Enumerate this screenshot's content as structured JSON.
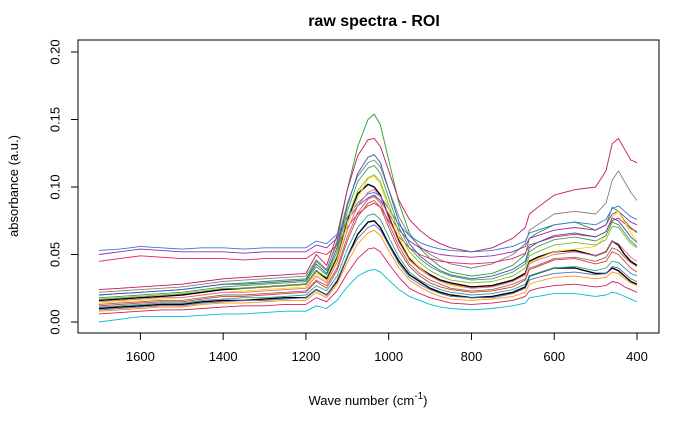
{
  "chart_data": {
    "type": "line",
    "title": "raw spectra - ROI",
    "xlabel_main": "Wave number (cm",
    "xlabel_sup": "-1",
    "xlabel_close": ")",
    "ylabel": "absorbance (a.u.)",
    "x_reversed": true,
    "xlim": [
      1700,
      400
    ],
    "ylim": [
      0.0,
      0.2
    ],
    "x_ticks": [
      1600,
      1400,
      1200,
      1000,
      800,
      600,
      400
    ],
    "x_tick_labels": [
      "1600",
      "1400",
      "1200",
      "1000",
      "800",
      "600",
      "400"
    ],
    "y_ticks": [
      0.0,
      0.05,
      0.1,
      0.15,
      0.2
    ],
    "y_tick_labels": [
      "0.00",
      "0.05",
      "0.10",
      "0.15",
      "0.20"
    ],
    "grid": false,
    "legend": "none",
    "x": [
      1700,
      1650,
      1600,
      1550,
      1500,
      1450,
      1400,
      1350,
      1300,
      1250,
      1200,
      1175,
      1150,
      1125,
      1100,
      1075,
      1050,
      1035,
      1020,
      1000,
      975,
      950,
      925,
      900,
      875,
      850,
      800,
      750,
      700,
      670,
      660,
      640,
      600,
      550,
      500,
      475,
      460,
      445,
      430,
      415,
      400
    ],
    "series": [
      {
        "color": "#000000",
        "values": [
          0.01,
          0.011,
          0.012,
          0.013,
          0.013,
          0.015,
          0.016,
          0.016,
          0.017,
          0.018,
          0.018,
          0.024,
          0.02,
          0.03,
          0.048,
          0.065,
          0.074,
          0.075,
          0.07,
          0.058,
          0.045,
          0.035,
          0.03,
          0.025,
          0.022,
          0.02,
          0.018,
          0.019,
          0.022,
          0.026,
          0.034,
          0.036,
          0.04,
          0.04,
          0.036,
          0.036,
          0.04,
          0.038,
          0.034,
          0.03,
          0.028
        ]
      },
      {
        "color": "#000000",
        "values": [
          0.016,
          0.017,
          0.018,
          0.019,
          0.02,
          0.022,
          0.024,
          0.025,
          0.026,
          0.027,
          0.028,
          0.038,
          0.032,
          0.048,
          0.076,
          0.095,
          0.102,
          0.1,
          0.094,
          0.078,
          0.06,
          0.047,
          0.04,
          0.035,
          0.031,
          0.029,
          0.026,
          0.027,
          0.031,
          0.036,
          0.045,
          0.048,
          0.052,
          0.053,
          0.049,
          0.052,
          0.06,
          0.057,
          0.05,
          0.045,
          0.042
        ]
      },
      {
        "color": "#22a02a",
        "values": [
          0.02,
          0.021,
          0.022,
          0.023,
          0.024,
          0.026,
          0.028,
          0.029,
          0.03,
          0.031,
          0.032,
          0.045,
          0.038,
          0.06,
          0.098,
          0.13,
          0.15,
          0.154,
          0.146,
          0.12,
          0.088,
          0.066,
          0.055,
          0.047,
          0.041,
          0.037,
          0.034,
          0.036,
          0.042,
          0.05,
          0.062,
          0.066,
          0.072,
          0.074,
          0.068,
          0.072,
          0.085,
          0.082,
          0.075,
          0.07,
          0.066
        ]
      },
      {
        "color": "#c2185b",
        "values": [
          0.024,
          0.025,
          0.026,
          0.027,
          0.028,
          0.03,
          0.032,
          0.033,
          0.034,
          0.035,
          0.036,
          0.05,
          0.042,
          0.064,
          0.098,
          0.123,
          0.135,
          0.136,
          0.13,
          0.112,
          0.09,
          0.076,
          0.068,
          0.062,
          0.058,
          0.055,
          0.052,
          0.055,
          0.062,
          0.07,
          0.08,
          0.085,
          0.094,
          0.098,
          0.1,
          0.112,
          0.132,
          0.136,
          0.128,
          0.12,
          0.118
        ]
      },
      {
        "color": "#808080",
        "values": [
          0.022,
          0.023,
          0.024,
          0.025,
          0.026,
          0.028,
          0.03,
          0.031,
          0.032,
          0.033,
          0.034,
          0.046,
          0.039,
          0.058,
          0.088,
          0.108,
          0.118,
          0.12,
          0.115,
          0.098,
          0.078,
          0.064,
          0.056,
          0.05,
          0.046,
          0.043,
          0.04,
          0.043,
          0.05,
          0.058,
          0.068,
          0.072,
          0.08,
          0.082,
          0.08,
          0.088,
          0.105,
          0.112,
          0.104,
          0.096,
          0.09
        ]
      },
      {
        "color": "#2e7bd6",
        "values": [
          0.053,
          0.054,
          0.056,
          0.055,
          0.054,
          0.055,
          0.055,
          0.054,
          0.055,
          0.055,
          0.055,
          0.06,
          0.058,
          0.065,
          0.078,
          0.088,
          0.095,
          0.096,
          0.093,
          0.084,
          0.072,
          0.064,
          0.059,
          0.056,
          0.054,
          0.053,
          0.052,
          0.053,
          0.056,
          0.06,
          0.066,
          0.068,
          0.072,
          0.074,
          0.072,
          0.076,
          0.084,
          0.086,
          0.082,
          0.078,
          0.076
        ]
      },
      {
        "color": "#9c27b0",
        "values": [
          0.05,
          0.052,
          0.054,
          0.053,
          0.052,
          0.052,
          0.052,
          0.051,
          0.052,
          0.052,
          0.052,
          0.057,
          0.055,
          0.062,
          0.075,
          0.086,
          0.092,
          0.094,
          0.09,
          0.08,
          0.068,
          0.06,
          0.055,
          0.052,
          0.05,
          0.049,
          0.048,
          0.049,
          0.052,
          0.056,
          0.062,
          0.064,
          0.068,
          0.07,
          0.068,
          0.072,
          0.08,
          0.082,
          0.078,
          0.074,
          0.072
        ]
      },
      {
        "color": "#e91e63",
        "values": [
          0.045,
          0.047,
          0.049,
          0.048,
          0.047,
          0.047,
          0.047,
          0.046,
          0.047,
          0.047,
          0.047,
          0.052,
          0.05,
          0.057,
          0.07,
          0.08,
          0.086,
          0.088,
          0.085,
          0.075,
          0.063,
          0.055,
          0.05,
          0.047,
          0.045,
          0.044,
          0.043,
          0.044,
          0.047,
          0.051,
          0.057,
          0.059,
          0.063,
          0.065,
          0.063,
          0.067,
          0.075,
          0.077,
          0.073,
          0.069,
          0.067
        ]
      },
      {
        "color": "#00bcd4",
        "values": [
          0.0,
          0.002,
          0.004,
          0.004,
          0.004,
          0.005,
          0.006,
          0.006,
          0.007,
          0.008,
          0.008,
          0.012,
          0.01,
          0.016,
          0.026,
          0.034,
          0.038,
          0.039,
          0.037,
          0.031,
          0.024,
          0.019,
          0.016,
          0.013,
          0.011,
          0.01,
          0.009,
          0.01,
          0.012,
          0.014,
          0.018,
          0.019,
          0.021,
          0.021,
          0.019,
          0.02,
          0.022,
          0.021,
          0.019,
          0.017,
          0.015
        ]
      },
      {
        "color": "#ffd600",
        "values": [
          0.014,
          0.015,
          0.016,
          0.017,
          0.018,
          0.02,
          0.022,
          0.023,
          0.024,
          0.025,
          0.026,
          0.036,
          0.03,
          0.046,
          0.072,
          0.092,
          0.106,
          0.108,
          0.102,
          0.084,
          0.062,
          0.048,
          0.04,
          0.034,
          0.03,
          0.027,
          0.025,
          0.026,
          0.03,
          0.035,
          0.044,
          0.047,
          0.052,
          0.054,
          0.056,
          0.064,
          0.078,
          0.082,
          0.074,
          0.066,
          0.06
        ]
      },
      {
        "color": "#e53935",
        "values": [
          0.012,
          0.013,
          0.014,
          0.015,
          0.015,
          0.017,
          0.019,
          0.019,
          0.02,
          0.021,
          0.022,
          0.03,
          0.025,
          0.038,
          0.06,
          0.078,
          0.088,
          0.09,
          0.085,
          0.07,
          0.053,
          0.041,
          0.034,
          0.029,
          0.026,
          0.024,
          0.022,
          0.023,
          0.026,
          0.031,
          0.039,
          0.041,
          0.046,
          0.047,
          0.043,
          0.045,
          0.052,
          0.05,
          0.045,
          0.04,
          0.037
        ]
      },
      {
        "color": "#43a047",
        "values": [
          0.018,
          0.019,
          0.02,
          0.021,
          0.022,
          0.024,
          0.026,
          0.027,
          0.028,
          0.029,
          0.03,
          0.041,
          0.035,
          0.052,
          0.082,
          0.104,
          0.114,
          0.116,
          0.11,
          0.092,
          0.07,
          0.055,
          0.047,
          0.041,
          0.037,
          0.034,
          0.031,
          0.032,
          0.037,
          0.043,
          0.052,
          0.056,
          0.061,
          0.063,
          0.06,
          0.064,
          0.074,
          0.072,
          0.066,
          0.06,
          0.056
        ]
      },
      {
        "color": "#ff9800",
        "values": [
          0.008,
          0.009,
          0.01,
          0.011,
          0.011,
          0.013,
          0.014,
          0.014,
          0.015,
          0.016,
          0.016,
          0.022,
          0.018,
          0.028,
          0.044,
          0.058,
          0.066,
          0.068,
          0.064,
          0.053,
          0.04,
          0.031,
          0.026,
          0.022,
          0.019,
          0.017,
          0.016,
          0.017,
          0.019,
          0.022,
          0.028,
          0.03,
          0.033,
          0.034,
          0.032,
          0.033,
          0.037,
          0.036,
          0.032,
          0.029,
          0.027
        ]
      },
      {
        "color": "#3f51b5",
        "values": [
          0.02,
          0.021,
          0.022,
          0.023,
          0.024,
          0.026,
          0.028,
          0.028,
          0.029,
          0.03,
          0.031,
          0.043,
          0.036,
          0.055,
          0.086,
          0.11,
          0.122,
          0.124,
          0.118,
          0.098,
          0.074,
          0.058,
          0.049,
          0.043,
          0.038,
          0.035,
          0.032,
          0.034,
          0.039,
          0.045,
          0.055,
          0.059,
          0.064,
          0.066,
          0.063,
          0.067,
          0.077,
          0.075,
          0.069,
          0.063,
          0.059
        ]
      },
      {
        "color": "#f06292",
        "values": [
          0.015,
          0.016,
          0.017,
          0.018,
          0.018,
          0.02,
          0.022,
          0.022,
          0.023,
          0.024,
          0.025,
          0.034,
          0.029,
          0.044,
          0.068,
          0.086,
          0.096,
          0.098,
          0.093,
          0.077,
          0.059,
          0.046,
          0.039,
          0.034,
          0.03,
          0.028,
          0.025,
          0.026,
          0.03,
          0.035,
          0.043,
          0.046,
          0.05,
          0.052,
          0.049,
          0.052,
          0.06,
          0.058,
          0.053,
          0.048,
          0.045
        ]
      },
      {
        "color": "#26a69a",
        "values": [
          0.011,
          0.012,
          0.013,
          0.014,
          0.014,
          0.016,
          0.017,
          0.018,
          0.018,
          0.019,
          0.02,
          0.027,
          0.023,
          0.034,
          0.054,
          0.07,
          0.079,
          0.08,
          0.076,
          0.063,
          0.048,
          0.037,
          0.031,
          0.027,
          0.024,
          0.022,
          0.02,
          0.021,
          0.024,
          0.028,
          0.034,
          0.036,
          0.04,
          0.041,
          0.038,
          0.04,
          0.045,
          0.044,
          0.04,
          0.036,
          0.034
        ]
      },
      {
        "color": "#8d6e63",
        "values": [
          0.013,
          0.014,
          0.015,
          0.016,
          0.016,
          0.018,
          0.02,
          0.02,
          0.021,
          0.022,
          0.023,
          0.031,
          0.027,
          0.04,
          0.063,
          0.081,
          0.091,
          0.093,
          0.088,
          0.073,
          0.056,
          0.043,
          0.036,
          0.031,
          0.028,
          0.025,
          0.023,
          0.024,
          0.028,
          0.032,
          0.04,
          0.042,
          0.047,
          0.048,
          0.045,
          0.048,
          0.055,
          0.053,
          0.048,
          0.044,
          0.041
        ]
      },
      {
        "color": "#7cb342",
        "values": [
          0.017,
          0.018,
          0.019,
          0.02,
          0.021,
          0.023,
          0.025,
          0.025,
          0.026,
          0.027,
          0.028,
          0.038,
          0.033,
          0.049,
          0.077,
          0.097,
          0.107,
          0.109,
          0.104,
          0.087,
          0.066,
          0.052,
          0.044,
          0.038,
          0.034,
          0.031,
          0.029,
          0.03,
          0.034,
          0.04,
          0.049,
          0.052,
          0.057,
          0.059,
          0.057,
          0.061,
          0.071,
          0.07,
          0.064,
          0.058,
          0.055
        ]
      },
      {
        "color": "#5c6bc0",
        "values": [
          0.009,
          0.01,
          0.011,
          0.012,
          0.012,
          0.014,
          0.015,
          0.016,
          0.016,
          0.017,
          0.018,
          0.024,
          0.02,
          0.031,
          0.048,
          0.062,
          0.07,
          0.072,
          0.068,
          0.057,
          0.043,
          0.033,
          0.028,
          0.024,
          0.021,
          0.019,
          0.018,
          0.018,
          0.021,
          0.025,
          0.031,
          0.033,
          0.036,
          0.037,
          0.035,
          0.036,
          0.041,
          0.04,
          0.036,
          0.032,
          0.03
        ]
      },
      {
        "color": "#d81b60",
        "values": [
          0.006,
          0.007,
          0.008,
          0.009,
          0.009,
          0.01,
          0.011,
          0.012,
          0.012,
          0.013,
          0.013,
          0.018,
          0.015,
          0.023,
          0.036,
          0.047,
          0.054,
          0.055,
          0.052,
          0.043,
          0.033,
          0.025,
          0.021,
          0.018,
          0.016,
          0.014,
          0.013,
          0.014,
          0.016,
          0.019,
          0.023,
          0.025,
          0.027,
          0.028,
          0.026,
          0.027,
          0.03,
          0.029,
          0.026,
          0.024,
          0.022
        ]
      }
    ]
  }
}
